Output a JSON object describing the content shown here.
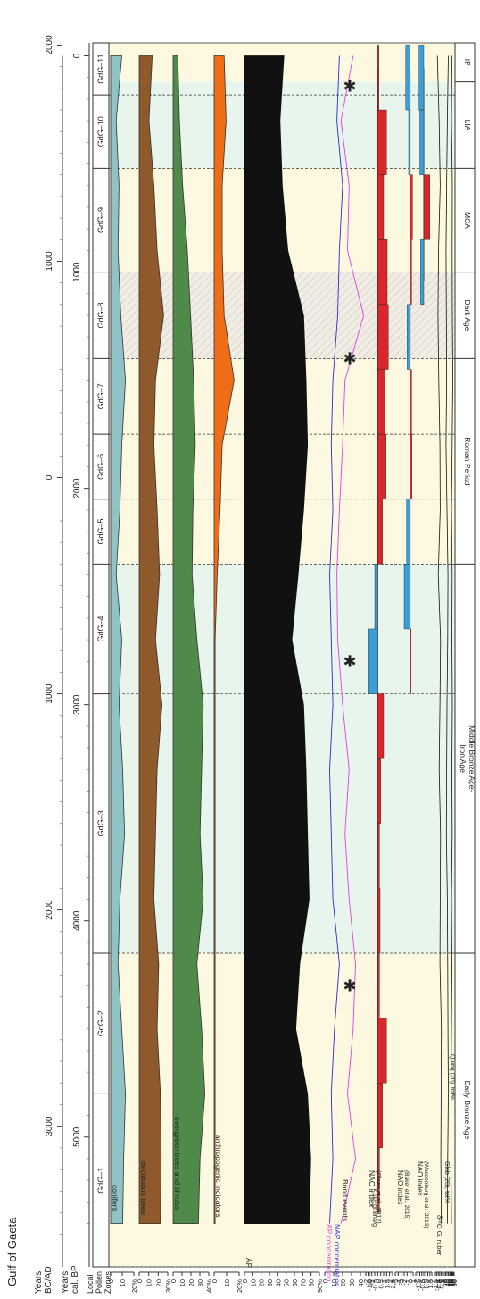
{
  "title": "Gulf of Gaeta",
  "colors": {
    "conifers": "#8fc3c6",
    "deciduous": "#8e5a2b",
    "evergreen": "#4f8a4a",
    "anthropogenic": "#ee6d16",
    "ap": "#111111",
    "ap_conc": "#e040e0",
    "nap_conc": "#2a2ad8",
    "nao_pos": "#d8262b",
    "nao_neg": "#3a9fd6",
    "band_yellow": "#fdf9e0",
    "band_green": "#e8f5ec",
    "band_hatch": "#f1ede4"
  },
  "axes": {
    "years_bcad_label": "Years\nBC/AD",
    "years_bp_label": "Years\ncal. BP",
    "zones_label": "Local\nPollen\nZones",
    "bcad_ticks": [
      "2000",
      "1000",
      "0",
      "1000",
      "2000",
      "3000"
    ],
    "bp_ticks": [
      "0",
      "1000",
      "2000",
      "3000",
      "4000",
      "5000"
    ],
    "bp_range": [
      -60,
      5600
    ]
  },
  "zones": [
    {
      "label": "GdG–11",
      "from": -60,
      "to": 180
    },
    {
      "label": "GdG–10",
      "from": 180,
      "to": 520
    },
    {
      "label": "GdG–9",
      "from": 520,
      "to": 1000
    },
    {
      "label": "GdG–8",
      "from": 1000,
      "to": 1400
    },
    {
      "label": "GdG–7",
      "from": 1400,
      "to": 1750
    },
    {
      "label": "GdG–6",
      "from": 1750,
      "to": 2050
    },
    {
      "label": "GdG–5",
      "from": 2050,
      "to": 2350
    },
    {
      "label": "GdG–4",
      "from": 2350,
      "to": 2950
    },
    {
      "label": "GdG–3",
      "from": 2950,
      "to": 4150
    },
    {
      "label": "GdG–2",
      "from": 4150,
      "to": 4800
    },
    {
      "label": "GdG–1",
      "from": 4800,
      "to": 5600
    }
  ],
  "periods": [
    {
      "label": "IP",
      "from": -60,
      "to": 120
    },
    {
      "label": "LIA",
      "from": 120,
      "to": 520
    },
    {
      "label": "MCA",
      "from": 520,
      "to": 1000
    },
    {
      "label": "Dark Age",
      "from": 1000,
      "to": 1400
    },
    {
      "label": "Roman Period",
      "from": 1400,
      "to": 2350
    },
    {
      "label": "Middle Bronze Age-\nIron Age",
      "from": 2350,
      "to": 4150
    },
    {
      "label": "Early Bronze Age",
      "from": 4150,
      "to": 5600
    }
  ],
  "panels": [
    {
      "key": "conifers",
      "label": "conifers",
      "ticks": [
        "0",
        "10",
        "20%"
      ],
      "max": 25
    },
    {
      "key": "deciduous",
      "label": "deciduous trees",
      "ticks": [
        "0",
        "10",
        "20",
        "30%"
      ],
      "max": 35
    },
    {
      "key": "evergreen",
      "label": "evergreen trees and shrubs",
      "ticks": [
        "0",
        "10",
        "20",
        "30",
        "40%"
      ],
      "max": 45
    },
    {
      "key": "anthropogenic",
      "label": "anthropogenic indicators",
      "ticks": [
        "0",
        "10",
        "20%"
      ],
      "max": 25
    },
    {
      "key": "ap",
      "label": "AP",
      "ticks": [
        "0",
        "10",
        "20",
        "30",
        "40",
        "50",
        "60",
        "70",
        "80",
        "90%"
      ],
      "max": 95
    },
    {
      "key": "conc",
      "label_ap": "AP concentration",
      "label_nap": "NAP concentration",
      "ticks": [
        "0",
        "10",
        "20",
        "30",
        "40",
        "50"
      ],
      "unit": "× 10³ grains/g",
      "max": 55
    },
    {
      "key": "bond",
      "label": "Bond events"
    },
    {
      "key": "nao1",
      "label": "NAO index",
      "sublabel": "(Olsen et al., 2012)",
      "ticks": [
        "-2",
        "-1.5",
        "-1",
        "-0.5",
        "0",
        "0.5",
        "1",
        "1.5",
        "2",
        "2.5"
      ]
    },
    {
      "key": "nao2",
      "label": "NAO index",
      "sublabel": "(Baker et al., 2015)",
      "ticks": [
        "-5",
        "-4",
        "-3",
        "-2",
        "-1",
        "0",
        "1"
      ]
    },
    {
      "key": "nao3",
      "label": "NAO index",
      "sublabel": "(Wassenburg et al., 2013)",
      "ticks": [
        "-2",
        "-1.5",
        "-1",
        "-0.5",
        "0",
        "0.5",
        "1",
        "1.5",
        "2"
      ]
    },
    {
      "key": "d18o",
      "label": "δ¹⁸O",
      "sublabel": "G. ruber",
      "ticks": [
        "-1.5",
        "-1",
        "-0.5",
        "0",
        "0.5",
        "1"
      ]
    },
    {
      "key": "glob",
      "label": "Glob (20), tot%",
      "ticks": [
        "0",
        "20",
        "40",
        "60",
        "80"
      ]
    },
    {
      "key": "quinq",
      "label": "Quinq (20), tot%",
      "ticks": [
        "0",
        "10",
        "20",
        "30",
        "40",
        "50"
      ]
    }
  ],
  "chart_data": {
    "type": "area",
    "title": "Gulf of Gaeta",
    "y_axis": "Years cal. BP",
    "ylim": [
      -60,
      5600
    ],
    "bond_events": [
      140,
      1400,
      2800,
      4300
    ],
    "series": [
      {
        "name": "conifers",
        "x": [
          0,
          300,
          600,
          900,
          1200,
          1500,
          1800,
          2100,
          2400,
          2700,
          3000,
          3300,
          3600,
          3900,
          4200,
          4500,
          4800,
          5100,
          5400
        ],
        "values": [
          12,
          6,
          9,
          8,
          11,
          16,
          12,
          10,
          6,
          12,
          9,
          13,
          15,
          10,
          8,
          12,
          16,
          14,
          13
        ]
      },
      {
        "name": "deciduous trees",
        "x": [
          0,
          300,
          600,
          900,
          1200,
          1500,
          1800,
          2100,
          2400,
          2700,
          3000,
          3300,
          3600,
          3900,
          4200,
          4500,
          4800,
          5100,
          5400
        ],
        "values": [
          16,
          12,
          18,
          22,
          30,
          20,
          18,
          22,
          25,
          20,
          28,
          22,
          20,
          18,
          24,
          22,
          26,
          27,
          26
        ]
      },
      {
        "name": "evergreen trees and shrubs",
        "x": [
          0,
          300,
          600,
          900,
          1200,
          1500,
          1800,
          2100,
          2400,
          2700,
          3000,
          3300,
          3600,
          3900,
          4200,
          4500,
          4800,
          5100,
          5400
        ],
        "values": [
          6,
          8,
          12,
          18,
          22,
          26,
          28,
          25,
          24,
          30,
          38,
          36,
          34,
          38,
          30,
          36,
          40,
          34,
          32
        ]
      },
      {
        "name": "anthropogenic indicators",
        "x": [
          0,
          300,
          600,
          900,
          1200,
          1500,
          1800,
          2100,
          2400,
          2700,
          3000,
          3300,
          3600,
          3900,
          4200,
          4500,
          4800,
          5100,
          5400
        ],
        "values": [
          10,
          12,
          8,
          8,
          10,
          20,
          8,
          6,
          3,
          1,
          1,
          1,
          1,
          1,
          1,
          1,
          1,
          1,
          1
        ]
      },
      {
        "name": "AP",
        "x": [
          0,
          300,
          600,
          900,
          1200,
          1500,
          1800,
          2100,
          2400,
          2700,
          3000,
          3300,
          3600,
          3900,
          4200,
          4500,
          4800,
          5100,
          5400
        ],
        "values": [
          50,
          45,
          48,
          55,
          75,
          78,
          80,
          75,
          68,
          60,
          75,
          78,
          80,
          82,
          70,
          65,
          80,
          84,
          82
        ]
      },
      {
        "name": "AP concentration",
        "x": [
          0,
          300,
          600,
          900,
          1200,
          1500,
          1800,
          2100,
          2400,
          2700,
          3000,
          3300,
          3600,
          3900,
          4200,
          4500,
          4800,
          5100,
          5400
        ],
        "values": [
          35,
          20,
          30,
          28,
          48,
          25,
          22,
          18,
          15,
          16,
          22,
          30,
          25,
          30,
          38,
          35,
          28,
          38,
          20
        ]
      },
      {
        "name": "NAP concentration",
        "x": [
          0,
          300,
          600,
          900,
          1200,
          1500,
          1800,
          2100,
          2400,
          2700,
          3000,
          3300,
          3600,
          3900,
          4200,
          4500,
          4800,
          5100,
          5400
        ],
        "values": [
          18,
          15,
          22,
          18,
          16,
          10,
          8,
          10,
          6,
          8,
          10,
          6,
          8,
          10,
          18,
          12,
          8,
          10,
          6
        ]
      },
      {
        "name": "NAO index (Olsen et al., 2012)",
        "x": [
          100,
          400,
          700,
          1000,
          1300,
          1600,
          1900,
          2200,
          2500,
          2800,
          3100,
          3400,
          3700,
          4000,
          4300,
          4600,
          4900,
          5200
        ],
        "values": [
          0.2,
          1.5,
          1.0,
          1.6,
          1.8,
          1.2,
          1.4,
          0.8,
          -0.5,
          -1.5,
          1.0,
          0.5,
          0.3,
          0.4,
          0.3,
          1.5,
          0.8,
          0.3
        ]
      },
      {
        "name": "NAO index (Baker et al., 2015)",
        "x": [
          100,
          400,
          700,
          1000,
          1300,
          1600,
          1900,
          2200,
          2500,
          2800
        ],
        "values": [
          -1.5,
          -0.5,
          0.8,
          0.5,
          -1.0,
          0.5,
          0.6,
          -1.2,
          -2.0,
          0.3
        ]
      },
      {
        "name": "NAO index (Wassenburg et al., 2013)",
        "x": [
          100,
          400,
          700,
          1000
        ],
        "values": [
          -1.2,
          -1.0,
          1.5,
          -0.8
        ]
      },
      {
        "name": "δ18O G. ruber",
        "x": [
          0,
          300,
          600,
          900,
          1200,
          1500,
          1800,
          2100,
          2400,
          2700,
          3000,
          3300,
          3600,
          3900,
          4200,
          4500,
          4800,
          5100,
          5400
        ],
        "values": [
          -0.8,
          -0.2,
          0.2,
          -0.4,
          -0.6,
          -0.3,
          0.1,
          0.2,
          -0.5,
          0.3,
          0.1,
          -0.2,
          0.3,
          0.2,
          0.1,
          0.6,
          0.5,
          0.4,
          0.6
        ]
      },
      {
        "name": "Glob (20), tot%",
        "x": [
          0,
          300,
          600,
          900,
          1200,
          1500,
          1800,
          2100,
          2400,
          2700,
          3000,
          3300,
          3600,
          3900,
          4200,
          4500,
          4800,
          5100,
          5400
        ],
        "values": [
          60,
          45,
          35,
          25,
          30,
          35,
          25,
          40,
          55,
          50,
          40,
          35,
          30,
          45,
          50,
          55,
          60,
          50,
          45
        ]
      },
      {
        "name": "Quinq (20), tot%",
        "x": [
          0,
          300,
          600,
          900,
          1200,
          1500,
          1800,
          2100,
          2400,
          2700,
          3000,
          3300,
          3600,
          3900,
          4200,
          4500,
          4800,
          5100,
          5400
        ],
        "values": [
          25,
          20,
          30,
          28,
          30,
          35,
          28,
          20,
          28,
          25,
          30,
          25,
          28,
          20,
          25,
          20,
          15,
          15,
          20
        ]
      }
    ]
  }
}
